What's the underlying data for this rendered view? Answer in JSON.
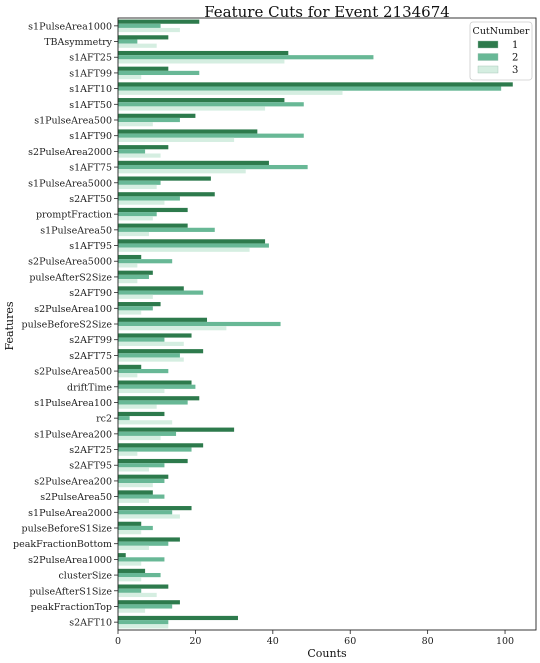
{
  "chart_data": {
    "type": "bar",
    "orientation": "horizontal",
    "title": "Feature Cuts for Event 2134674",
    "xlabel": "Counts",
    "ylabel": "Features",
    "xlim": [
      0,
      108
    ],
    "xticks": [
      0,
      20,
      40,
      60,
      80,
      100
    ],
    "grid": false,
    "legend_title": "CutNumber",
    "legend_position": "top-right",
    "categories": [
      "s1PulseArea1000",
      "TBAsymmetry",
      "s1AFT25",
      "s1AFT99",
      "s1AFT10",
      "s1AFT50",
      "s1PulseArea500",
      "s1AFT90",
      "s2PulseArea2000",
      "s1AFT75",
      "s1PulseArea5000",
      "s2AFT50",
      "promptFraction",
      "s1PulseArea50",
      "s1AFT95",
      "s2PulseArea5000",
      "pulseAfterS2Size",
      "s2AFT90",
      "s2PulseArea100",
      "pulseBeforeS2Size",
      "s2AFT99",
      "s2AFT75",
      "s2PulseArea500",
      "driftTime",
      "s1PulseArea100",
      "rc2",
      "s1PulseArea200",
      "s2AFT25",
      "s2AFT95",
      "s2PulseArea200",
      "s2PulseArea50",
      "s1PulseArea2000",
      "pulseBeforeS1Size",
      "peakFractionBottom",
      "s2PulseArea1000",
      "clusterSize",
      "pulseAfterS1Size",
      "peakFractionTop",
      "s2AFT10"
    ],
    "series": [
      {
        "name": "1",
        "color": "#2d7a4c",
        "values": [
          21,
          13,
          44,
          13,
          102,
          43,
          20,
          36,
          13,
          39,
          24,
          25,
          18,
          18,
          38,
          6,
          9,
          17,
          11,
          23,
          19,
          22,
          6,
          19,
          21,
          12,
          30,
          22,
          18,
          13,
          9,
          19,
          6,
          16,
          2,
          7,
          13,
          16,
          31
        ]
      },
      {
        "name": "2",
        "color": "#68b896",
        "values": [
          11,
          5,
          66,
          21,
          99,
          48,
          16,
          48,
          7,
          49,
          11,
          16,
          10,
          25,
          39,
          14,
          8,
          22,
          9,
          42,
          12,
          16,
          13,
          20,
          18,
          3,
          15,
          19,
          12,
          12,
          12,
          14,
          9,
          13,
          12,
          11,
          6,
          14,
          13
        ]
      },
      {
        "name": "3",
        "color": "#d5eee1",
        "values": [
          16,
          10,
          43,
          6,
          58,
          38,
          9,
          30,
          11,
          33,
          10,
          12,
          9,
          8,
          34,
          5,
          5,
          9,
          6,
          28,
          17,
          17,
          5,
          12,
          10,
          14,
          11,
          5,
          8,
          9,
          8,
          16,
          6,
          8,
          6,
          6,
          10,
          7,
          13
        ]
      }
    ]
  }
}
